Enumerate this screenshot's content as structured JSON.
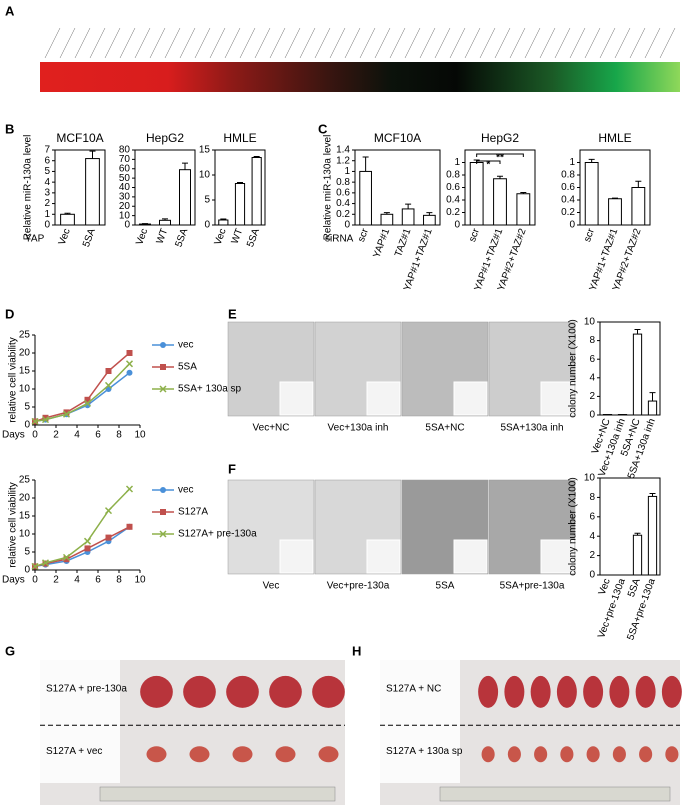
{
  "panel_labels": [
    "A",
    "B",
    "C",
    "D",
    "E",
    "F",
    "G",
    "H"
  ],
  "chart_data": [
    {
      "type": "bar",
      "title": "MCF10A",
      "categories": [
        "Vec",
        "5SA"
      ],
      "values": [
        1,
        6.2
      ],
      "errors": [
        0.1,
        0.7
      ],
      "ylim": [
        0,
        7
      ],
      "yticks": [
        0,
        1,
        2,
        3,
        4,
        5,
        6,
        7
      ],
      "y_label": "Relative miR-130a level",
      "x_label": "YAP",
      "color": "#ffffff"
    },
    {
      "type": "bar",
      "title": "HepG2",
      "categories": [
        "Vec",
        "WT",
        "5SA"
      ],
      "values": [
        1,
        5,
        59
      ],
      "errors": [
        0.5,
        1.5,
        7
      ],
      "ylim": [
        0,
        80
      ],
      "yticks": [
        0,
        10,
        20,
        30,
        40,
        50,
        60,
        70,
        80
      ],
      "color": "#ffffff"
    },
    {
      "type": "bar",
      "title": "HMLE",
      "categories": [
        "Vec",
        "WT",
        "5SA"
      ],
      "values": [
        1,
        8.3,
        13.5
      ],
      "errors": [
        0.2,
        0.2,
        0.2
      ],
      "ylim": [
        0,
        15
      ],
      "yticks": [
        0,
        5,
        10,
        15
      ],
      "color": "#ffffff"
    },
    {
      "type": "bar",
      "title": "MCF10A",
      "categories": [
        "scr",
        "YAP#1",
        "TAZ#1",
        "YAP#1+TAZ#1"
      ],
      "values": [
        1,
        0.2,
        0.3,
        0.18
      ],
      "errors": [
        0.27,
        0.03,
        0.09,
        0.05
      ],
      "ylim": [
        0,
        1.4
      ],
      "yticks": [
        0,
        0.2,
        0.4,
        0.6,
        0.8,
        1,
        1.2,
        1.4
      ],
      "y_label": "Relative miR-130a level",
      "x_label": "siRNA",
      "color": "#ffffff"
    },
    {
      "type": "bar",
      "title": "HepG2",
      "categories": [
        "scr",
        "YAP#1+TAZ#1",
        "YAP#2+TAZ#2"
      ],
      "values": [
        1,
        0.74,
        0.5
      ],
      "errors": [
        0.04,
        0.04,
        0.02
      ],
      "ylim": [
        0,
        1.2
      ],
      "yticks": [
        0,
        0.2,
        0.4,
        0.6,
        0.8,
        1
      ],
      "annotations": [
        "*",
        "**"
      ],
      "color": "#ffffff"
    },
    {
      "type": "bar",
      "title": "HMLE",
      "categories": [
        "scr",
        "YAP#1+TAZ#1",
        "YAP#2+TAZ#2"
      ],
      "values": [
        1,
        0.42,
        0.6
      ],
      "errors": [
        0.05,
        0.01,
        0.1
      ],
      "ylim": [
        0,
        1.2
      ],
      "yticks": [
        0,
        0.2,
        0.4,
        0.6,
        0.8,
        1
      ],
      "color": "#ffffff"
    },
    {
      "type": "line",
      "x": [
        0,
        1,
        3,
        5,
        7,
        9
      ],
      "xlim": [
        0,
        10
      ],
      "xticks": [
        0,
        2,
        4,
        6,
        8,
        10
      ],
      "ylim": [
        0,
        25
      ],
      "yticks": [
        0,
        5,
        10,
        15,
        20,
        25
      ],
      "y_label": "relative cell viability",
      "x_label": "Days",
      "series": [
        {
          "name": "vec",
          "color": "#4a90d9",
          "marker": "circle",
          "values": [
            1,
            1.5,
            3,
            5.5,
            10,
            14.5
          ]
        },
        {
          "name": "5SA",
          "color": "#c0504d",
          "marker": "square",
          "values": [
            1,
            2,
            3.5,
            7,
            15,
            20
          ]
        },
        {
          "name": "5SA+ 130a sp",
          "color": "#8db04a",
          "marker": "x",
          "values": [
            1,
            1.5,
            3,
            6,
            11,
            17
          ]
        }
      ]
    },
    {
      "type": "line",
      "x": [
        0,
        1,
        3,
        5,
        7,
        9
      ],
      "xlim": [
        0,
        10
      ],
      "xticks": [
        0,
        2,
        4,
        6,
        8,
        10
      ],
      "ylim": [
        0,
        25
      ],
      "yticks": [
        0,
        5,
        10,
        15,
        20,
        25
      ],
      "y_label": "relative cell viability",
      "x_label": "Days",
      "series": [
        {
          "name": "vec",
          "color": "#4a90d9",
          "marker": "circle",
          "values": [
            1,
            1.5,
            2.5,
            5,
            8,
            12
          ]
        },
        {
          "name": "S127A",
          "color": "#c0504d",
          "marker": "square",
          "values": [
            1,
            1.8,
            3,
            6,
            9,
            12
          ]
        },
        {
          "name": "S127A+ pre-130a",
          "color": "#8db04a",
          "marker": "x",
          "values": [
            1,
            2,
            3.5,
            8,
            16.5,
            22.5
          ]
        }
      ]
    },
    {
      "type": "bar",
      "categories": [
        "Vec+NC",
        "Vec+130a inh",
        "5SA+NC",
        "5SA+130a inh"
      ],
      "values": [
        0.05,
        0.05,
        8.7,
        1.5
      ],
      "errors": [
        0,
        0,
        0.5,
        0.9
      ],
      "ylim": [
        0,
        10
      ],
      "yticks": [
        0,
        2,
        4,
        6,
        8,
        10
      ],
      "y_label": "colony number (X100)",
      "color": "#ffffff"
    },
    {
      "type": "bar",
      "categories": [
        "Vec",
        "Vec+pre-130a",
        "5SA",
        "5SA+pre-130a"
      ],
      "values": [
        0,
        0,
        4.1,
        8.1
      ],
      "errors": [
        0,
        0,
        0.2,
        0.3
      ],
      "ylim": [
        0,
        10
      ],
      "yticks": [
        0,
        2,
        4,
        6,
        8,
        10
      ],
      "y_label": "colony number (X100)",
      "color": "#ffffff"
    }
  ],
  "images": {
    "E": [
      "Vec+NC",
      "Vec+130a inh",
      "5SA+NC",
      "5SA+130a inh"
    ],
    "F": [
      "Vec",
      "Vec+pre-130a",
      "5SA",
      "5SA+pre-130a"
    ],
    "G": [
      "S127A + pre-130a",
      "S127A + vec"
    ],
    "H": [
      "S127A + NC",
      "S127A + 130a sp"
    ]
  }
}
